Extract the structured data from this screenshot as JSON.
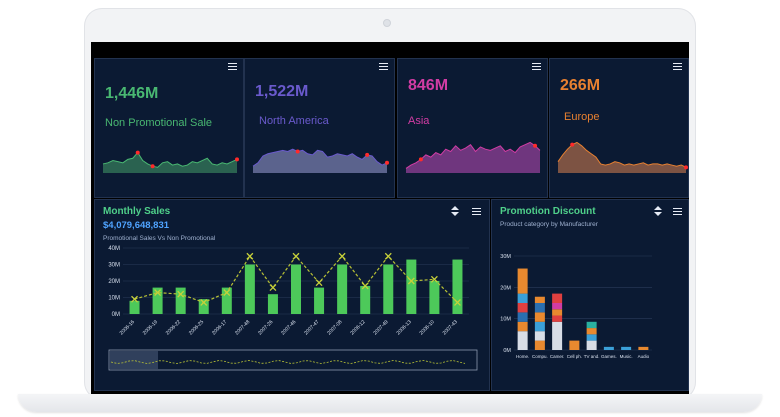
{
  "kpis": [
    {
      "value": "1,446M",
      "label": "Non Promotional Sale",
      "color": "#49b872",
      "fill": "#2e6a53",
      "spark": [
        8,
        9,
        11,
        10,
        9,
        12,
        13,
        18,
        11,
        8,
        6,
        5,
        9,
        10,
        7,
        8,
        6,
        7,
        10,
        9,
        11,
        13,
        8,
        7,
        9,
        8,
        10,
        12
      ],
      "dots": [
        7,
        10,
        27
      ]
    },
    {
      "value": "1,522M",
      "label": "North America",
      "color": "#6a5acd",
      "fill": "#646c97",
      "spark": [
        6,
        9,
        15,
        17,
        18,
        19,
        20,
        19,
        21,
        19,
        20,
        17,
        16,
        20,
        19,
        14,
        15,
        17,
        16,
        15,
        17,
        14,
        12,
        16,
        15,
        10,
        7,
        9
      ],
      "dots": [
        9,
        23,
        27
      ]
    },
    {
      "value": "846M",
      "label": "Asia",
      "color": "#d23ca4",
      "fill": "#7a3a86",
      "spark": [
        4,
        7,
        9,
        12,
        16,
        14,
        18,
        16,
        21,
        19,
        24,
        20,
        22,
        25,
        19,
        23,
        21,
        20,
        22,
        24,
        19,
        21,
        18,
        23,
        25,
        27,
        24,
        20
      ],
      "dots": [
        3,
        26
      ]
    },
    {
      "value": "266M",
      "label": "Europe",
      "color": "#e88030",
      "fill": "#8a5a45",
      "spark": [
        10,
        16,
        21,
        25,
        27,
        24,
        20,
        17,
        14,
        8,
        7,
        8,
        10,
        9,
        7,
        8,
        7,
        8,
        9,
        7,
        8,
        8,
        7,
        8,
        7,
        6,
        7,
        5
      ],
      "dots": [
        3,
        27
      ]
    }
  ],
  "monthly": {
    "title": "Monthly Sales",
    "total": "$4,079,648,831",
    "subtitle": "Promotional Sales Vs Non Promotional",
    "y_ticks": [
      "40M",
      "30M",
      "20M",
      "10M",
      "0M"
    ],
    "categories": [
      "2006-16",
      "2006-19",
      "2006-22",
      "2006-25",
      "2006-17",
      "2007-48",
      "2007-26",
      "2007-46",
      "2007-47",
      "2007-08",
      "2006-12",
      "2007-49",
      "2006-13",
      "2006-10",
      "2007-43"
    ],
    "bars": [
      8,
      16,
      16,
      9,
      16,
      30,
      12,
      30,
      16,
      30,
      17,
      30,
      33,
      20,
      33
    ],
    "line": [
      9,
      13,
      12,
      7,
      13,
      35,
      16,
      35,
      19,
      35,
      17,
      35,
      20,
      21,
      7
    ]
  },
  "promo": {
    "title": "Promotion Discount",
    "subtitle": "Product category by Manufacturer",
    "y_ticks": [
      "30M",
      "20M",
      "10M",
      "0M"
    ],
    "categories": [
      "Home.",
      "Compu.",
      "Camer.",
      "Cell ph.",
      "TV and.",
      "Games.",
      "Music.",
      "Audio"
    ]
  }
}
